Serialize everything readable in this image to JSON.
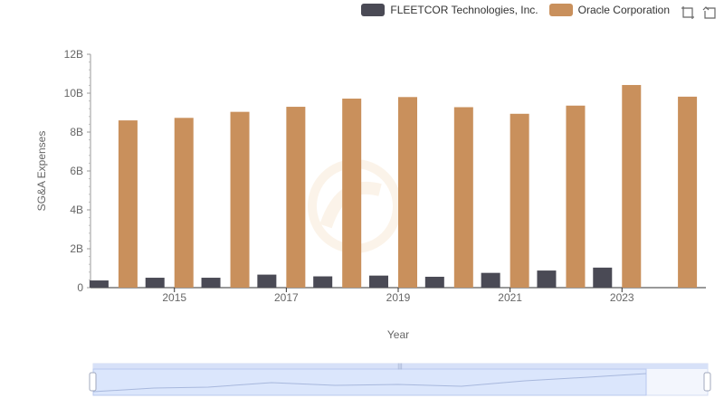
{
  "chart_data": {
    "type": "bar",
    "xlabel": "Year",
    "ylabel": "SG&A Expenses",
    "ylim": [
      0,
      12
    ],
    "y_ticks": [
      "0",
      "2B",
      "4B",
      "6B",
      "8B",
      "10B",
      "12B"
    ],
    "y_tick_values": [
      0,
      2,
      4,
      6,
      8,
      10,
      12
    ],
    "categories": [
      "2014",
      "2015",
      "2016",
      "2017",
      "2018",
      "2019",
      "2020",
      "2021",
      "2022",
      "2023",
      "2024"
    ],
    "x_tick_labels": [
      "",
      "2015",
      "",
      "2017",
      "",
      "2019",
      "",
      "2021",
      "",
      "2023",
      ""
    ],
    "series": [
      {
        "name": "FLEETCOR Technologies, Inc.",
        "color": "#4a4a55",
        "values": [
          0.37,
          0.51,
          0.51,
          0.67,
          0.58,
          0.62,
          0.56,
          0.76,
          0.88,
          1.03,
          null
        ]
      },
      {
        "name": "Oracle Corporation",
        "color": "#c9905c",
        "values": [
          8.6,
          8.73,
          9.04,
          9.3,
          9.72,
          9.8,
          9.28,
          8.94,
          9.36,
          10.42,
          9.82
        ]
      }
    ],
    "legend_position": "top-right",
    "grid": false
  },
  "toolbox": {
    "zoom_icon": "zoom-icon",
    "restore_icon": "restore-icon"
  }
}
